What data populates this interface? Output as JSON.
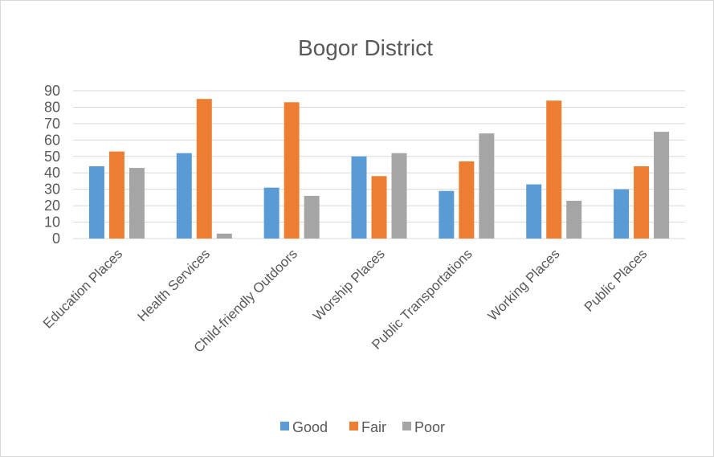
{
  "chart_data": {
    "type": "bar",
    "title": "Bogor District",
    "categories": [
      "Education Places",
      "Health Services",
      "Child-friendly Outdoors",
      "Worship Places",
      "Public Transportations",
      "Working Places",
      "Public Places"
    ],
    "series": [
      {
        "name": "Good",
        "color": "#5b9bd5",
        "values": [
          44,
          52,
          31,
          50,
          29,
          33,
          30
        ]
      },
      {
        "name": "Fair",
        "color": "#ed7d31",
        "values": [
          53,
          85,
          83,
          38,
          47,
          84,
          44
        ]
      },
      {
        "name": "Poor",
        "color": "#a5a5a5",
        "values": [
          43,
          3,
          26,
          52,
          64,
          23,
          65
        ]
      }
    ],
    "ylim": [
      0,
      90
    ],
    "yticks": [
      "0",
      "10",
      "20",
      "30",
      "40",
      "50",
      "60",
      "70",
      "80",
      "90"
    ],
    "grid": true,
    "legend_position": "bottom"
  }
}
